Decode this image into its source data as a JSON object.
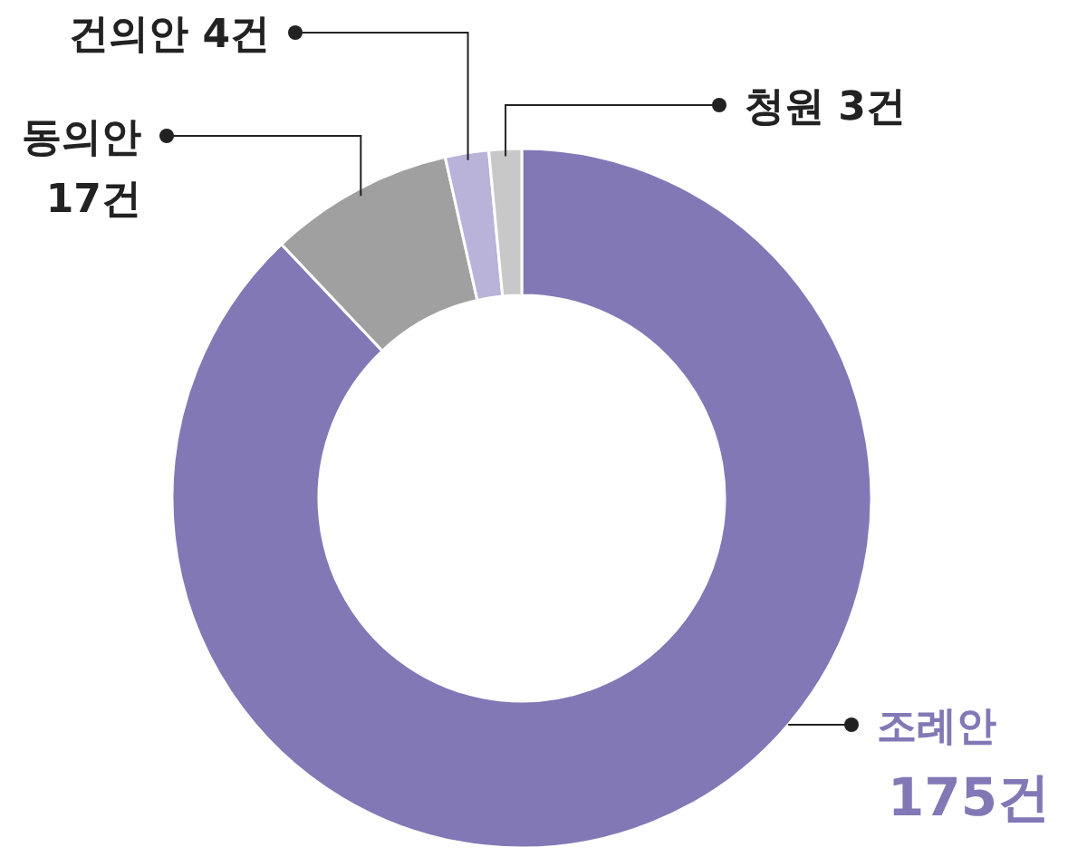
{
  "chart_data": {
    "type": "donut",
    "categories": [
      "조례안",
      "동의안",
      "건의안",
      "청원"
    ],
    "values": [
      175,
      17,
      4,
      3
    ],
    "value_labels": [
      "175건",
      "17건",
      "4건",
      "3건"
    ],
    "colors": [
      "#8378b6",
      "#a0a0a0",
      "#b9b3da",
      "#c8c8c8"
    ]
  }
}
